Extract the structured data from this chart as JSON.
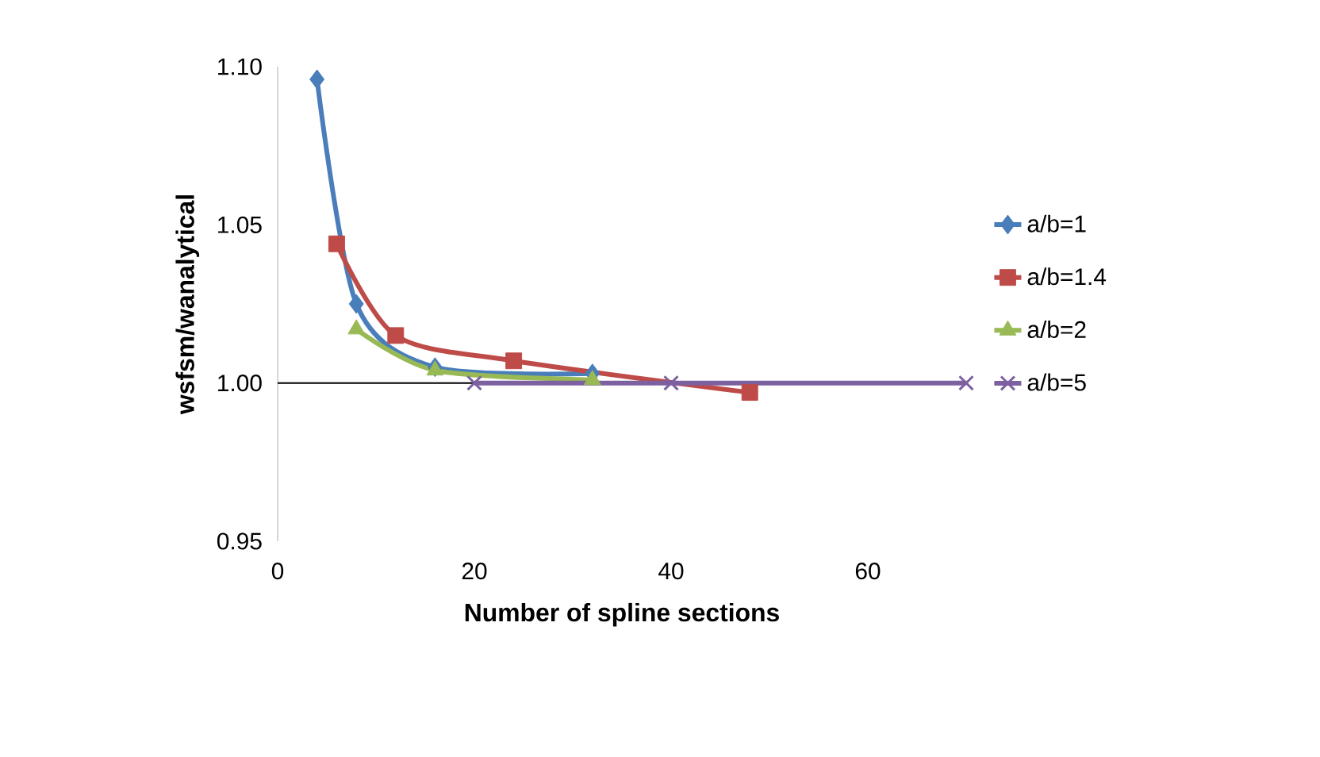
{
  "chart_data": {
    "type": "line",
    "xlabel": "Number of spline sections",
    "ylabel": "wsfsm/wanalytical",
    "xlim": [
      0,
      70
    ],
    "xticks": [
      0,
      20,
      40,
      60
    ],
    "ylim": [
      0.95,
      1.1
    ],
    "yticks": [
      {
        "value": 0.95,
        "label": "0.95"
      },
      {
        "value": 1.0,
        "label": "1.00"
      },
      {
        "value": 1.05,
        "label": "1.05"
      },
      {
        "value": 1.1,
        "label": "1.10"
      }
    ],
    "grid": false,
    "legend": "right",
    "ref_lines": [
      {
        "axis": "y",
        "value": 1.0,
        "color": "#000000"
      }
    ],
    "series": [
      {
        "name": "a/b=1",
        "color": "#4a7ebb",
        "marker": "diamond",
        "x": [
          4,
          8,
          16,
          32
        ],
        "values": [
          1.096,
          1.025,
          1.005,
          1.003
        ]
      },
      {
        "name": "a/b=1.4",
        "color": "#be4b48",
        "marker": "square",
        "x": [
          6,
          12,
          24,
          48
        ],
        "values": [
          1.044,
          1.015,
          1.007,
          0.997
        ]
      },
      {
        "name": "a/b=2",
        "color": "#98b954",
        "marker": "triangle",
        "x": [
          8,
          16,
          32
        ],
        "values": [
          1.017,
          1.004,
          1.001
        ]
      },
      {
        "name": "a/b=5",
        "color": "#7d60a0",
        "marker": "cross",
        "x": [
          20,
          40,
          70
        ],
        "values": [
          1.0,
          1.0,
          1.0
        ]
      }
    ]
  }
}
